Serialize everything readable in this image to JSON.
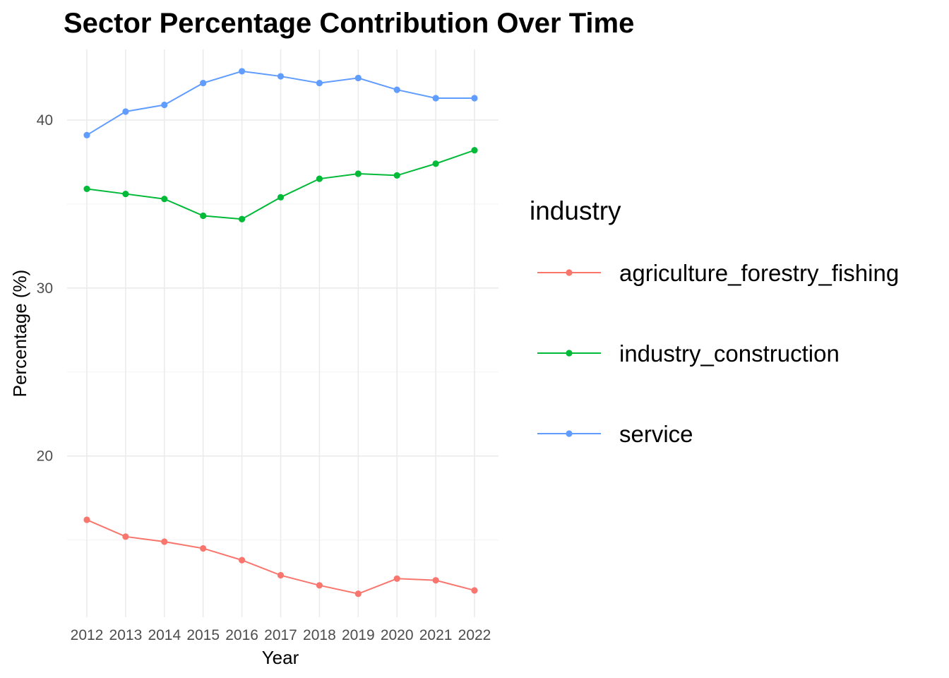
{
  "chart_data": {
    "type": "line",
    "title": "Sector Percentage Contribution Over Time",
    "xlabel": "Year",
    "ylabel": "Percentage (%)",
    "x": [
      "2012",
      "2013",
      "2014",
      "2015",
      "2016",
      "2017",
      "2018",
      "2019",
      "2020",
      "2021",
      "2022"
    ],
    "yticks": [
      20,
      30,
      40
    ],
    "ylim": [
      10.4,
      44.2
    ],
    "grid": true,
    "legend": {
      "title": "industry",
      "placement": "right"
    },
    "series": [
      {
        "name": "agriculture_forestry_fishing",
        "color": "#F8766D",
        "values": [
          16.2,
          15.2,
          14.9,
          14.5,
          13.8,
          12.9,
          12.3,
          11.8,
          12.7,
          12.6,
          12.0
        ]
      },
      {
        "name": "industry_construction",
        "color": "#00BA38",
        "values": [
          35.9,
          35.6,
          35.3,
          34.3,
          34.1,
          35.4,
          36.5,
          36.8,
          36.7,
          37.4,
          38.2
        ]
      },
      {
        "name": "service",
        "color": "#619CFF",
        "values": [
          39.1,
          40.5,
          40.9,
          42.2,
          42.9,
          42.6,
          42.2,
          42.5,
          41.8,
          41.3,
          41.3
        ]
      }
    ]
  }
}
